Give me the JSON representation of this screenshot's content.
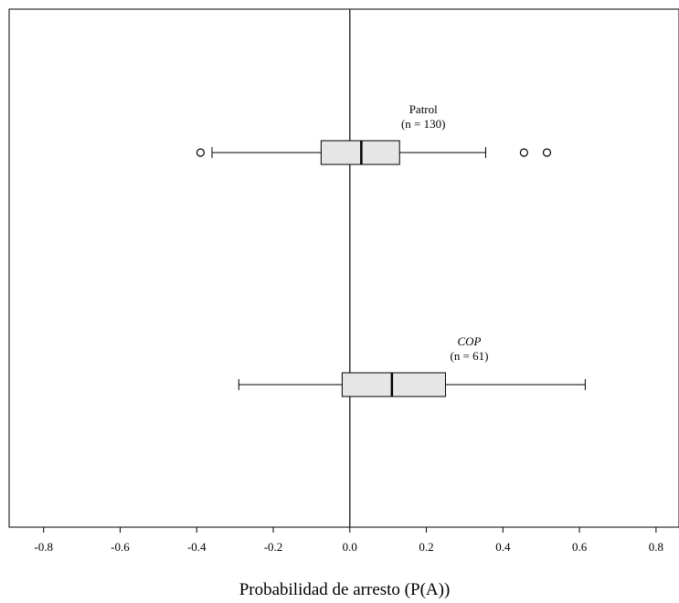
{
  "chart_data": {
    "type": "boxplot",
    "orientation": "horizontal",
    "xlabel": "Probabilidad de arresto (P(A))",
    "xlim": [
      -0.89,
      0.86
    ],
    "x_ticks": [
      "-0.8",
      "-0.6",
      "-0.4",
      "-0.2",
      "0.0",
      "0.2",
      "0.4",
      "0.6",
      "0.8"
    ],
    "x_tick_values": [
      -0.8,
      -0.6,
      -0.4,
      -0.2,
      0.0,
      0.2,
      0.4,
      0.6,
      0.8
    ],
    "reference_line": 0.0,
    "groups": [
      {
        "name": "Patrol",
        "n_label": "(n = 130)",
        "italic": false,
        "whisker_low": -0.36,
        "q1": -0.075,
        "median": 0.03,
        "q3": 0.13,
        "whisker_high": 0.355,
        "outliers": [
          -0.39,
          0.455,
          0.515
        ]
      },
      {
        "name": "COP",
        "n_label": "(n = 61)",
        "italic": true,
        "whisker_low": -0.29,
        "q1": -0.02,
        "median": 0.11,
        "q3": 0.25,
        "whisker_high": 0.615,
        "outliers": []
      }
    ],
    "grid": false,
    "colors": {
      "box_fill": "#e6e6e6",
      "stroke": "#000000",
      "reference": "#333333"
    }
  }
}
